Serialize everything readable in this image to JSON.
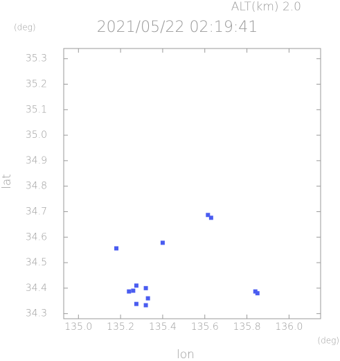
{
  "chart_data": {
    "type": "scatter",
    "title": "2021/05/22 02:19:41",
    "subtitle": "ALT(km) 2.0",
    "y_unit": "(deg)",
    "x_unit": "(deg)",
    "ylabel": "lat",
    "xlabel": "lon",
    "color": "#4a5cf0",
    "xlim": [
      134.93,
      136.15
    ],
    "ylim": [
      34.28,
      35.34
    ],
    "xticks": [
      {
        "value": 135.0,
        "label": "135.0"
      },
      135.2,
      135.4,
      135.6,
      135.8,
      {
        "value": 136.0,
        "label": "136.0"
      }
    ],
    "yticks": [
      34.3,
      34.4,
      34.5,
      34.6,
      34.7,
      34.8,
      34.9,
      {
        "value": 35.0,
        "label": "35.0"
      },
      35.1,
      35.2,
      35.3
    ],
    "x": [
      135.18,
      135.4,
      135.615,
      135.63,
      135.26,
      135.275,
      135.24,
      135.32,
      135.275,
      135.32,
      135.33,
      135.84,
      135.85
    ],
    "values": [
      34.556,
      34.578,
      34.687,
      34.676,
      34.39,
      34.41,
      34.387,
      34.4,
      34.338,
      34.333,
      34.36,
      34.387,
      34.38
    ]
  }
}
